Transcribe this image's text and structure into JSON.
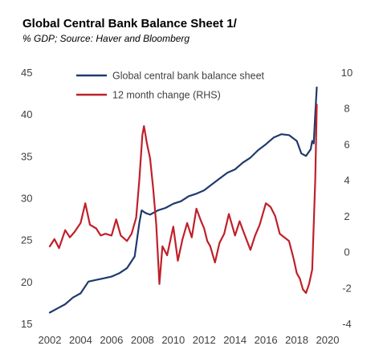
{
  "chart_data": {
    "type": "line",
    "title": "Global Central Bank Balance Sheet 1/",
    "subtitle": "% GDP; Source: Haver and Bloomberg",
    "xlabel": "",
    "ylabel": "",
    "y2label": "",
    "xlim": [
      2002,
      2020
    ],
    "ylim": [
      15,
      45
    ],
    "y2lim": [
      -4,
      10
    ],
    "x_ticks": [
      "2002",
      "2004",
      "2006",
      "2008",
      "2010",
      "2012",
      "2014",
      "2016",
      "2018",
      "2020"
    ],
    "y_ticks": [
      "15",
      "20",
      "25",
      "30",
      "35",
      "40",
      "45"
    ],
    "y2_ticks": [
      "-4",
      "-2",
      "0",
      "2",
      "4",
      "6",
      "8",
      "10"
    ],
    "grid": false,
    "legend_position": "top",
    "series": [
      {
        "name": "Global central bank balance sheet",
        "axis": "left",
        "color": "#1f3a6e",
        "x": [
          2002.0,
          2002.5,
          2003.0,
          2003.5,
          2004.0,
          2004.5,
          2005.0,
          2005.5,
          2006.0,
          2006.5,
          2007.0,
          2007.5,
          2007.8,
          2007.95,
          2008.2,
          2008.5,
          2009.0,
          2009.5,
          2010.0,
          2010.5,
          2011.0,
          2011.5,
          2012.0,
          2012.5,
          2013.0,
          2013.5,
          2014.0,
          2014.5,
          2015.0,
          2015.5,
          2016.0,
          2016.5,
          2017.0,
          2017.5,
          2018.0,
          2018.3,
          2018.6,
          2018.9,
          2019.0,
          2019.1,
          2019.2,
          2019.3
        ],
        "values": [
          16.3,
          16.8,
          17.3,
          18.1,
          18.6,
          20.0,
          20.2,
          20.4,
          20.6,
          21.0,
          21.6,
          23.0,
          27.0,
          28.5,
          28.2,
          28.0,
          28.5,
          28.8,
          29.3,
          29.6,
          30.2,
          30.5,
          30.9,
          31.6,
          32.3,
          33.0,
          33.4,
          34.2,
          34.8,
          35.7,
          36.4,
          37.2,
          37.6,
          37.5,
          36.8,
          35.3,
          35.0,
          35.8,
          36.8,
          36.5,
          40.0,
          43.2
        ]
      },
      {
        "name": "12 month change (RHS)",
        "axis": "right",
        "color": "#c0202a",
        "x": [
          2002.0,
          2002.3,
          2002.6,
          2003.0,
          2003.3,
          2003.6,
          2004.0,
          2004.3,
          2004.6,
          2005.0,
          2005.3,
          2005.6,
          2006.0,
          2006.3,
          2006.6,
          2007.0,
          2007.3,
          2007.6,
          2007.8,
          2008.0,
          2008.1,
          2008.3,
          2008.5,
          2008.7,
          2008.9,
          2009.1,
          2009.3,
          2009.6,
          2010.0,
          2010.3,
          2010.6,
          2010.9,
          2011.2,
          2011.5,
          2011.8,
          2012.0,
          2012.2,
          2012.4,
          2012.7,
          2013.0,
          2013.3,
          2013.6,
          2014.0,
          2014.3,
          2014.6,
          2015.0,
          2015.3,
          2015.6,
          2016.0,
          2016.3,
          2016.6,
          2016.9,
          2017.2,
          2017.5,
          2017.8,
          2018.0,
          2018.2,
          2018.4,
          2018.6,
          2018.8,
          2019.0,
          2019.1,
          2019.2,
          2019.3
        ],
        "values": [
          0.3,
          0.7,
          0.2,
          1.2,
          0.8,
          1.1,
          1.6,
          2.7,
          1.5,
          1.3,
          0.9,
          1.0,
          0.9,
          1.8,
          0.9,
          0.6,
          1.0,
          1.9,
          4.0,
          6.5,
          7.0,
          6.0,
          5.2,
          3.5,
          1.5,
          -1.8,
          0.3,
          -0.2,
          1.4,
          -0.5,
          0.7,
          1.6,
          0.8,
          2.4,
          1.7,
          1.3,
          0.6,
          0.3,
          -0.6,
          0.5,
          1.0,
          2.1,
          0.9,
          1.7,
          1.0,
          0.1,
          0.9,
          1.5,
          2.7,
          2.5,
          2.0,
          1.0,
          0.8,
          0.6,
          -0.4,
          -1.2,
          -1.5,
          -2.1,
          -2.3,
          -1.8,
          -1.0,
          1.5,
          4.0,
          8.2
        ]
      }
    ]
  }
}
